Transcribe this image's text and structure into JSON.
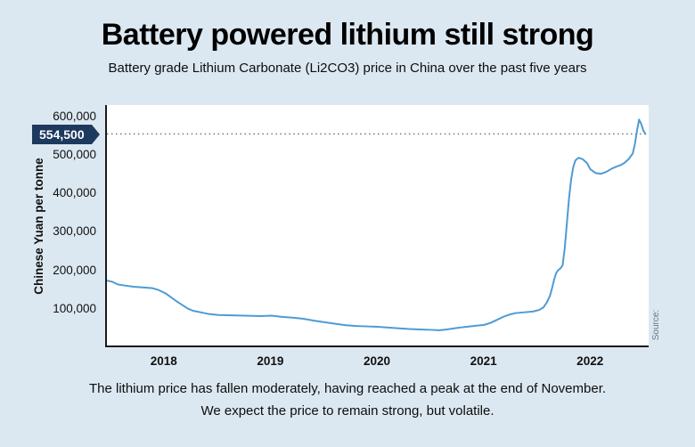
{
  "header": {
    "title": "Battery powered lithium still strong",
    "subtitle": "Battery grade Lithium Carbonate (Li2CO3) price in China over the past five years"
  },
  "chart": {
    "y_axis_label": "Chinese Yuan per tonne",
    "source_label": "Source:",
    "highlight": {
      "value": 554500,
      "label": "554,500"
    }
  },
  "caption": {
    "line1": "The lithium price has fallen moderately, having reached a peak at the end of November.",
    "line2": "We expect the price to remain strong, but volatile."
  },
  "chart_data": {
    "type": "line",
    "title": "Battery powered lithium still strong",
    "xlabel": "",
    "ylabel": "Chinese Yuan per tonne",
    "xlim": [
      2017.45,
      2022.55
    ],
    "ylim": [
      0,
      630000
    ],
    "grid": false,
    "legend": "none",
    "colors": {
      "line": "#4e9bd4",
      "badge": "#1d3a5e",
      "background": "#dce8f1",
      "dotted_line": "#5a6672"
    },
    "annotation": {
      "value": 554500,
      "label": "554,500",
      "style": "dotted-horizontal-line"
    },
    "yticks": [
      {
        "value": 100000,
        "label": "100,000"
      },
      {
        "value": 200000,
        "label": "200,000"
      },
      {
        "value": 300000,
        "label": "300,000"
      },
      {
        "value": 400000,
        "label": "400,000"
      },
      {
        "value": 500000,
        "label": "500,000"
      },
      {
        "value": 600000,
        "label": "600,000"
      }
    ],
    "xticks": [
      {
        "value": 2018,
        "label": "2018"
      },
      {
        "value": 2019,
        "label": "2019"
      },
      {
        "value": 2020,
        "label": "2020"
      },
      {
        "value": 2021,
        "label": "2021"
      },
      {
        "value": 2022,
        "label": "2022"
      }
    ],
    "series": [
      {
        "name": "Battery grade Li2CO3 price (CNY per tonne)",
        "points": [
          [
            2017.45,
            170000
          ],
          [
            2017.5,
            167000
          ],
          [
            2017.55,
            160000
          ],
          [
            2017.62,
            157000
          ],
          [
            2017.7,
            154000
          ],
          [
            2017.8,
            152000
          ],
          [
            2017.88,
            150000
          ],
          [
            2017.94,
            145000
          ],
          [
            2018.0,
            137000
          ],
          [
            2018.05,
            127000
          ],
          [
            2018.1,
            117000
          ],
          [
            2018.16,
            106000
          ],
          [
            2018.21,
            97000
          ],
          [
            2018.26,
            91000
          ],
          [
            2018.33,
            87000
          ],
          [
            2018.4,
            83000
          ],
          [
            2018.5,
            80000
          ],
          [
            2018.62,
            79000
          ],
          [
            2018.75,
            78000
          ],
          [
            2018.9,
            77000
          ],
          [
            2019.0,
            78000
          ],
          [
            2019.1,
            75000
          ],
          [
            2019.2,
            73000
          ],
          [
            2019.3,
            70000
          ],
          [
            2019.4,
            65000
          ],
          [
            2019.5,
            61000
          ],
          [
            2019.6,
            57000
          ],
          [
            2019.7,
            53000
          ],
          [
            2019.8,
            51000
          ],
          [
            2019.9,
            50000
          ],
          [
            2020.0,
            49000
          ],
          [
            2020.1,
            47000
          ],
          [
            2020.2,
            45000
          ],
          [
            2020.3,
            43000
          ],
          [
            2020.4,
            42000
          ],
          [
            2020.5,
            41000
          ],
          [
            2020.58,
            40000
          ],
          [
            2020.65,
            42000
          ],
          [
            2020.72,
            45000
          ],
          [
            2020.8,
            48000
          ],
          [
            2020.9,
            51000
          ],
          [
            2021.0,
            54000
          ],
          [
            2021.06,
            59000
          ],
          [
            2021.12,
            67000
          ],
          [
            2021.18,
            75000
          ],
          [
            2021.24,
            81000
          ],
          [
            2021.3,
            85000
          ],
          [
            2021.38,
            87000
          ],
          [
            2021.46,
            89000
          ],
          [
            2021.52,
            93000
          ],
          [
            2021.56,
            100000
          ],
          [
            2021.59,
            112000
          ],
          [
            2021.62,
            130000
          ],
          [
            2021.64,
            150000
          ],
          [
            2021.66,
            172000
          ],
          [
            2021.68,
            190000
          ],
          [
            2021.7,
            198000
          ],
          [
            2021.72,
            202000
          ],
          [
            2021.74,
            210000
          ],
          [
            2021.76,
            255000
          ],
          [
            2021.78,
            320000
          ],
          [
            2021.8,
            385000
          ],
          [
            2021.82,
            435000
          ],
          [
            2021.84,
            468000
          ],
          [
            2021.86,
            485000
          ],
          [
            2021.89,
            492000
          ],
          [
            2021.93,
            488000
          ],
          [
            2021.97,
            478000
          ],
          [
            2022.0,
            462000
          ],
          [
            2022.05,
            452000
          ],
          [
            2022.1,
            450000
          ],
          [
            2022.15,
            455000
          ],
          [
            2022.2,
            463000
          ],
          [
            2022.24,
            468000
          ],
          [
            2022.28,
            472000
          ],
          [
            2022.32,
            478000
          ],
          [
            2022.36,
            488000
          ],
          [
            2022.4,
            503000
          ],
          [
            2022.42,
            528000
          ],
          [
            2022.44,
            562000
          ],
          [
            2022.46,
            592000
          ],
          [
            2022.48,
            581000
          ],
          [
            2022.5,
            563000
          ],
          [
            2022.52,
            554500
          ]
        ]
      }
    ]
  }
}
